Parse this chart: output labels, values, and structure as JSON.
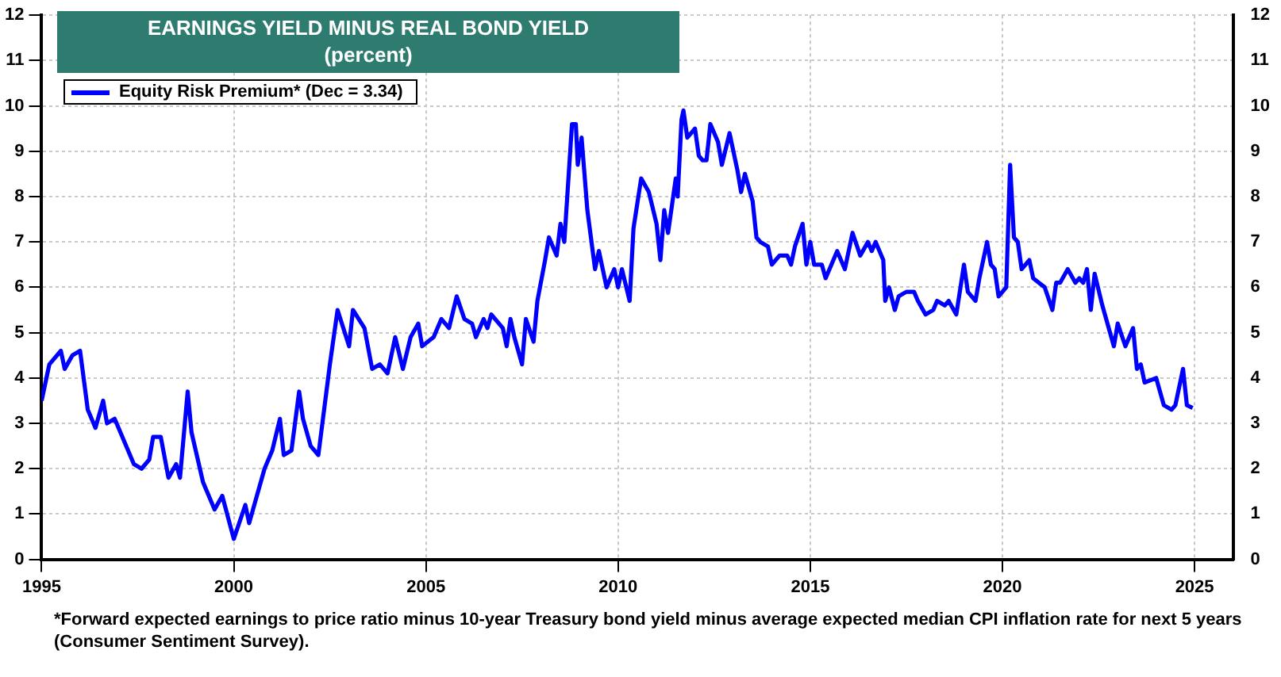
{
  "chart_data": {
    "type": "line",
    "title": "EARNINGS YIELD MINUS REAL BOND YIELD",
    "subtitle": "(percent)",
    "annotations": [
      "*Forward expected earnings to price ratio minus 10-year Treasury bond yield minus average expected median CPI inflation rate for next 5 years (Consumer Sentiment Survey)."
    ],
    "xlim": [
      1995,
      2026
    ],
    "xticks": [
      1995,
      2000,
      2005,
      2010,
      2015,
      2020,
      2025
    ],
    "ylim": [
      0,
      12
    ],
    "yticks": [
      0,
      1,
      2,
      3,
      4,
      5,
      6,
      7,
      8,
      9,
      10,
      11,
      12
    ],
    "y2lim": [
      0,
      12
    ],
    "y2ticks": [
      0,
      1,
      2,
      3,
      4,
      5,
      6,
      7,
      8,
      9,
      10,
      11,
      12
    ],
    "grid": true,
    "legend": "top left",
    "marker": "none",
    "line_style": "solid",
    "series": [
      {
        "name": "Equity Risk Premium* (Dec = 3.34)",
        "color": "#0000ff",
        "x": [
          1995.0,
          1995.2,
          1995.5,
          1995.6,
          1995.8,
          1996.0,
          1996.2,
          1996.4,
          1996.6,
          1996.7,
          1996.9,
          1997.4,
          1997.6,
          1997.8,
          1997.9,
          1998.1,
          1998.3,
          1998.5,
          1998.6,
          1998.8,
          1998.9,
          1999.2,
          1999.5,
          1999.7,
          2000.0,
          2000.3,
          2000.4,
          2000.6,
          2000.8,
          2001.0,
          2001.2,
          2001.3,
          2001.5,
          2001.7,
          2001.8,
          2002.0,
          2002.2,
          2002.5,
          2002.7,
          2003.0,
          2003.1,
          2003.4,
          2003.6,
          2003.8,
          2004.0,
          2004.2,
          2004.4,
          2004.6,
          2004.8,
          2004.9,
          2005.2,
          2005.4,
          2005.6,
          2005.8,
          2006.0,
          2006.2,
          2006.3,
          2006.5,
          2006.6,
          2006.7,
          2006.9,
          2007.0,
          2007.1,
          2007.2,
          2007.3,
          2007.5,
          2007.6,
          2007.8,
          2007.9,
          2008.1,
          2008.2,
          2008.4,
          2008.5,
          2008.6,
          2008.8,
          2008.9,
          2008.95,
          2009.05,
          2009.2,
          2009.4,
          2009.5,
          2009.7,
          2009.9,
          2010.0,
          2010.1,
          2010.3,
          2010.4,
          2010.6,
          2010.8,
          2011.0,
          2011.1,
          2011.2,
          2011.3,
          2011.5,
          2011.55,
          2011.65,
          2011.7,
          2011.8,
          2012.0,
          2012.1,
          2012.2,
          2012.3,
          2012.4,
          2012.6,
          2012.7,
          2012.9,
          2013.1,
          2013.2,
          2013.3,
          2013.5,
          2013.6,
          2013.7,
          2013.9,
          2014.0,
          2014.2,
          2014.4,
          2014.5,
          2014.6,
          2014.8,
          2014.9,
          2015.0,
          2015.1,
          2015.3,
          2015.4,
          2015.7,
          2015.9,
          2016.1,
          2016.3,
          2016.5,
          2016.6,
          2016.7,
          2016.9,
          2016.95,
          2017.05,
          2017.2,
          2017.3,
          2017.5,
          2017.7,
          2017.8,
          2018.0,
          2018.2,
          2018.3,
          2018.5,
          2018.6,
          2018.8,
          2019.0,
          2019.1,
          2019.3,
          2019.4,
          2019.6,
          2019.7,
          2019.8,
          2019.9,
          2020.1,
          2020.2,
          2020.3,
          2020.4,
          2020.5,
          2020.7,
          2020.8,
          2021.1,
          2021.3,
          2021.4,
          2021.5,
          2021.7,
          2021.9,
          2022.0,
          2022.1,
          2022.2,
          2022.3,
          2022.4,
          2022.6,
          2022.9,
          2023.0,
          2023.2,
          2023.4,
          2023.5,
          2023.6,
          2023.7,
          2024.0,
          2024.2,
          2024.4,
          2024.5,
          2024.7,
          2024.8,
          2024.95
        ],
        "values": [
          3.5,
          4.3,
          4.6,
          4.2,
          4.5,
          4.6,
          3.3,
          2.9,
          3.5,
          3.0,
          3.1,
          2.1,
          2.0,
          2.2,
          2.7,
          2.7,
          1.8,
          2.1,
          1.8,
          3.7,
          2.8,
          1.7,
          1.1,
          1.4,
          0.45,
          1.2,
          0.8,
          1.4,
          2.0,
          2.4,
          3.1,
          2.3,
          2.4,
          3.7,
          3.1,
          2.5,
          2.3,
          4.3,
          5.5,
          4.7,
          5.5,
          5.1,
          4.2,
          4.3,
          4.1,
          4.9,
          4.2,
          4.9,
          5.2,
          4.7,
          4.9,
          5.3,
          5.1,
          5.8,
          5.3,
          5.2,
          4.9,
          5.3,
          5.1,
          5.4,
          5.2,
          5.1,
          4.7,
          5.3,
          4.9,
          4.3,
          5.3,
          4.8,
          5.7,
          6.6,
          7.1,
          6.7,
          7.4,
          7.0,
          9.6,
          9.6,
          8.7,
          9.3,
          7.7,
          6.4,
          6.8,
          6.0,
          6.4,
          6.0,
          6.4,
          5.7,
          7.3,
          8.4,
          8.1,
          7.4,
          6.6,
          7.7,
          7.2,
          8.4,
          8.0,
          9.7,
          9.9,
          9.3,
          9.5,
          8.9,
          8.8,
          8.8,
          9.6,
          9.2,
          8.7,
          9.4,
          8.6,
          8.1,
          8.5,
          7.9,
          7.1,
          7.0,
          6.9,
          6.5,
          6.7,
          6.7,
          6.5,
          6.9,
          7.4,
          6.5,
          7.0,
          6.5,
          6.5,
          6.2,
          6.8,
          6.4,
          7.2,
          6.7,
          7.0,
          6.8,
          7.0,
          6.6,
          5.7,
          6.0,
          5.5,
          5.8,
          5.9,
          5.9,
          5.7,
          5.4,
          5.5,
          5.7,
          5.6,
          5.7,
          5.4,
          6.5,
          5.9,
          5.7,
          6.2,
          7.0,
          6.5,
          6.4,
          5.8,
          6.0,
          8.7,
          7.1,
          7.0,
          6.4,
          6.6,
          6.2,
          6.0,
          5.5,
          6.1,
          6.1,
          6.4,
          6.1,
          6.2,
          6.1,
          6.4,
          5.5,
          6.3,
          5.6,
          4.7,
          5.2,
          4.7,
          5.1,
          4.2,
          4.3,
          3.9,
          4.0,
          3.4,
          3.3,
          3.4,
          4.2,
          3.4,
          3.34
        ]
      }
    ]
  }
}
